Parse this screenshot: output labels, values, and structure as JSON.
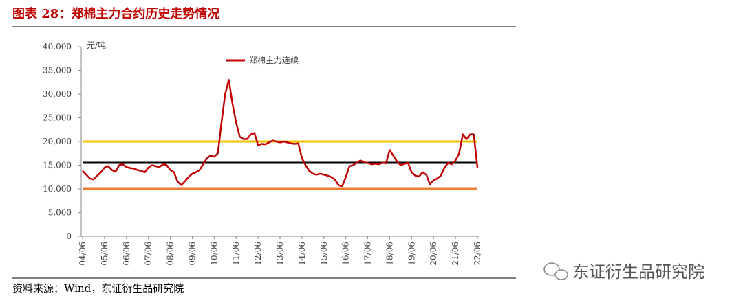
{
  "chart_data": {
    "type": "line",
    "title": "图表 28：郑棉主力合约历史走势情况",
    "y_unit": "元/吨",
    "categories": [
      "04/06",
      null,
      null,
      null,
      null,
      null,
      "05/06",
      null,
      null,
      null,
      null,
      null,
      "06/06",
      null,
      null,
      null,
      null,
      null,
      "07/06",
      null,
      null,
      null,
      null,
      null,
      "08/06",
      null,
      null,
      null,
      null,
      null,
      "09/06",
      null,
      null,
      null,
      null,
      null,
      "10/06",
      null,
      null,
      null,
      null,
      null,
      "11/06",
      null,
      null,
      null,
      null,
      null,
      "12/06",
      null,
      null,
      null,
      null,
      null,
      "13/06",
      null,
      null,
      null,
      null,
      null,
      "14/06",
      null,
      null,
      null,
      null,
      null,
      "15/06",
      null,
      null,
      null,
      null,
      null,
      "16/06",
      null,
      null,
      null,
      null,
      null,
      "17/06",
      null,
      null,
      null,
      null,
      null,
      "18/06",
      null,
      null,
      null,
      null,
      null,
      "19/06",
      null,
      null,
      null,
      null,
      null,
      "20/06",
      null,
      null,
      null,
      null,
      null,
      "21/06",
      null,
      null,
      null,
      null,
      null,
      "22/06"
    ],
    "series": [
      {
        "name": "郑棉主力连续",
        "color": "#c00000",
        "values": [
          13800,
          13000,
          12200,
          12000,
          12800,
          13500,
          14500,
          14800,
          14000,
          13600,
          15000,
          15200,
          14600,
          14400,
          14300,
          14000,
          13800,
          13500,
          14500,
          15000,
          14800,
          14600,
          15200,
          15000,
          14000,
          13500,
          11500,
          10800,
          11600,
          12500,
          13200,
          13500,
          14000,
          15200,
          16500,
          17000,
          16800,
          17500,
          24000,
          30000,
          33000,
          28000,
          24000,
          21000,
          20500,
          20500,
          21500,
          21800,
          19200,
          19500,
          19400,
          19800,
          20200,
          20000,
          19800,
          20000,
          19800,
          19600,
          19500,
          19600,
          16500,
          15000,
          13800,
          13200,
          13000,
          13200,
          13000,
          12800,
          12500,
          12000,
          10800,
          10500,
          12500,
          14800,
          15000,
          15500,
          16000,
          15600,
          15500,
          15200,
          15300,
          15200,
          15500,
          15400,
          18200,
          17000,
          15800,
          15000,
          15300,
          15500,
          13500,
          12800,
          12600,
          13500,
          13000,
          11000,
          11800,
          12200,
          12800,
          14500,
          15500,
          15200,
          16000,
          17500,
          21500,
          20500,
          21500,
          21500,
          14500
        ]
      }
    ],
    "reference_lines": [
      {
        "value": 20000,
        "color": "#f5c000"
      },
      {
        "value": 15500,
        "color": "#000000"
      },
      {
        "value": 10000,
        "color": "#ed7d31"
      }
    ],
    "ylim": [
      0,
      40000
    ],
    "yticks": [
      0,
      {
        "value": 5000,
        "label": "5,000"
      },
      {
        "value": 10000,
        "label": "10,000"
      },
      {
        "value": 15000,
        "label": "15,000"
      },
      {
        "value": 20000,
        "label": "20,000"
      },
      {
        "value": 25000,
        "label": "25,000"
      },
      {
        "value": 30000,
        "label": "30,000"
      },
      {
        "value": 35000,
        "label": "35,000"
      },
      {
        "value": 40000,
        "label": "40,000"
      }
    ],
    "grid": false
  },
  "source": "资料来源：Wind，东证衍生品研究院",
  "watermark": "东证衍生品研究院"
}
